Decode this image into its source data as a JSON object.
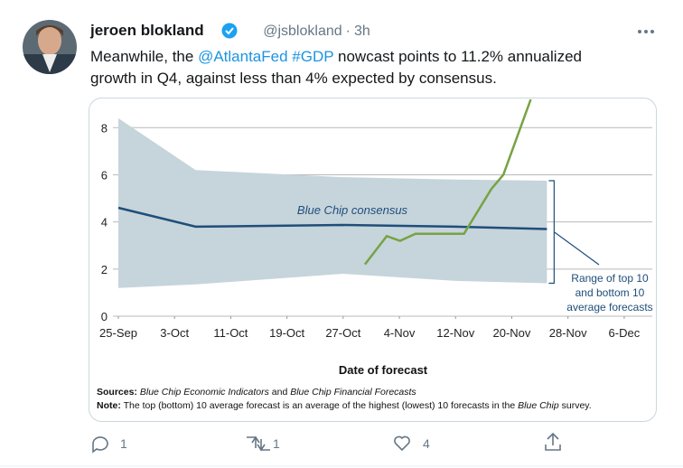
{
  "tweet": {
    "author": "jeroen blokland",
    "handle": "@jsblokland",
    "separator": "·",
    "time": "3h",
    "lines": [
      [
        {
          "text": "Meanwhile, the ",
          "link": false
        },
        {
          "text": "@AtlantaFed",
          "link": true
        },
        {
          "text": " #GDP",
          "link": true
        },
        {
          "text": " nowcast points to 11.2% annualized",
          "link": false
        }
      ],
      [
        {
          "text": "growth in Q4, against less than 4% expected by consensus.",
          "link": false
        }
      ]
    ],
    "replies": "1",
    "retweets": "1",
    "likes": "4"
  },
  "chart_data": {
    "type": "line",
    "xlabel": "Date of forecast",
    "xlim": [
      0,
      76
    ],
    "xticks": [
      {
        "value": 0,
        "label": "25-Sep"
      },
      {
        "value": 8,
        "label": "3-Oct"
      },
      {
        "value": 16,
        "label": "11-Oct"
      },
      {
        "value": 24,
        "label": "19-Oct"
      },
      {
        "value": 32,
        "label": "27-Oct"
      },
      {
        "value": 40,
        "label": "4-Nov"
      },
      {
        "value": 48,
        "label": "12-Nov"
      },
      {
        "value": 56,
        "label": "20-Nov"
      },
      {
        "value": 64,
        "label": "28-Nov"
      },
      {
        "value": 72,
        "label": "6-Dec"
      }
    ],
    "ylim": [
      0,
      9.2
    ],
    "yticks": [
      0,
      2,
      4,
      6,
      8
    ],
    "grid": true,
    "band": {
      "color": "#c6d4dc",
      "x": [
        0,
        11,
        32,
        48,
        61
      ],
      "upper": [
        8.4,
        6.2,
        5.9,
        5.8,
        5.75
      ],
      "lower": [
        1.2,
        1.35,
        1.8,
        1.5,
        1.4
      ],
      "label": [
        "Range of top 10",
        "and bottom 10",
        "average forecasts"
      ]
    },
    "series": [
      {
        "name": "Blue Chip consensus",
        "color": "#1f4e79",
        "x": [
          0,
          11,
          32,
          48,
          61
        ],
        "values": [
          4.6,
          3.8,
          3.87,
          3.8,
          3.7
        ]
      },
      {
        "color": "#76a343",
        "x": [
          35.1,
          38.2,
          40.1,
          42.3,
          49.2,
          53.1,
          54.8,
          58.7
        ],
        "values": [
          2.2,
          3.4,
          3.2,
          3.5,
          3.5,
          5.4,
          6.0,
          9.2
        ]
      }
    ],
    "sources": [
      {
        "text": "Sources:",
        "style": "b"
      },
      {
        "text": " Blue Chip Economic Indicators",
        "style": "i"
      },
      {
        "text": " and ",
        "style": ""
      },
      {
        "text": "Blue Chip Financial Forecasts",
        "style": "i"
      }
    ],
    "note": [
      {
        "text": "Note:",
        "style": "b"
      },
      {
        "text": " The top (bottom) 10 average forecast is an average of the highest (lowest) 10 forecasts in the ",
        "style": ""
      },
      {
        "text": "Blue Chip",
        "style": "i"
      },
      {
        "text": " survey.",
        "style": ""
      }
    ]
  }
}
